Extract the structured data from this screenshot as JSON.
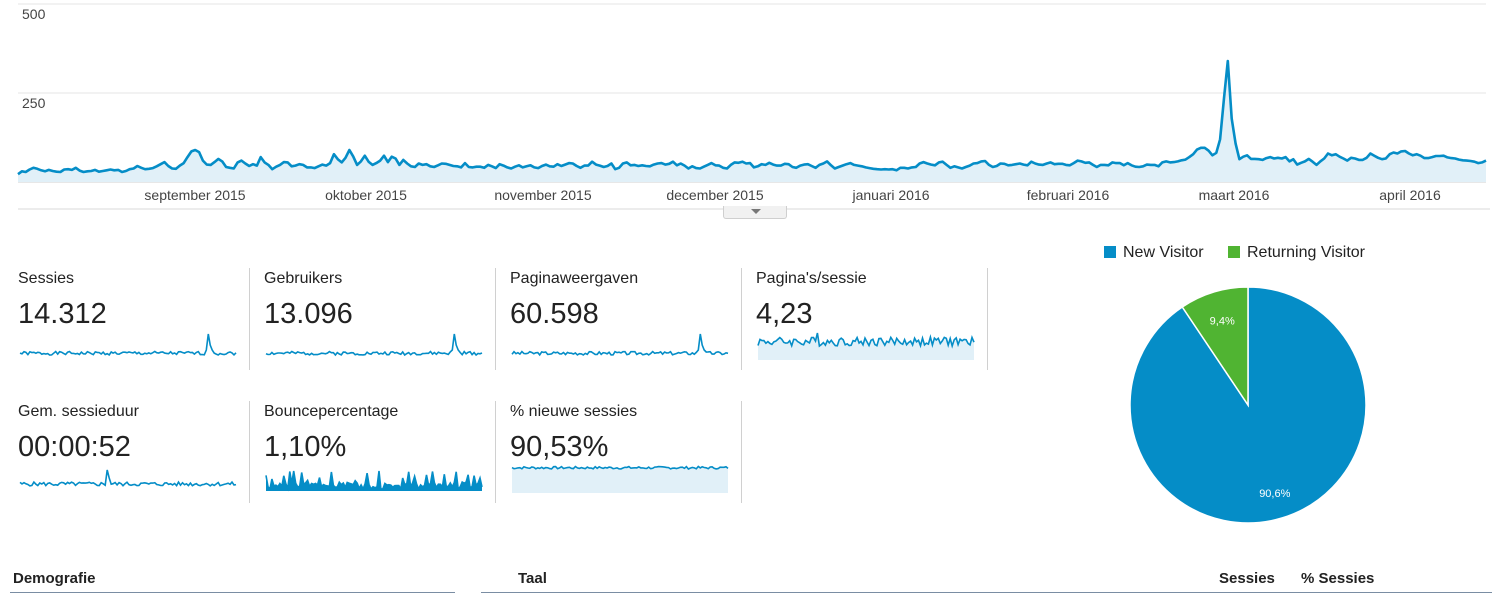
{
  "chart_data": [
    {
      "type": "area",
      "title": "",
      "ylim": [
        0,
        500
      ],
      "yticks": [
        "500",
        "250"
      ],
      "month_labels": [
        "september 2015",
        "oktober 2015",
        "november 2015",
        "december 2015",
        "januari 2016",
        "februari 2016",
        "maart 2016",
        "april 2016"
      ],
      "x_start": "2015-08-10",
      "x_end": "2016-04-22",
      "series": [
        {
          "color": "#058dc7",
          "values": [
            22,
            30,
            28,
            35,
            40,
            37,
            33,
            30,
            34,
            31,
            29,
            28,
            35,
            36,
            34,
            40,
            32,
            28,
            30,
            31,
            34,
            29,
            31,
            33,
            35,
            33,
            34,
            28,
            31,
            36,
            38,
            45,
            40,
            36,
            37,
            39,
            44,
            50,
            56,
            45,
            38,
            37,
            46,
            53,
            70,
            86,
            90,
            84,
            60,
            49,
            48,
            56,
            65,
            58,
            42,
            40,
            38,
            55,
            60,
            52,
            45,
            50,
            46,
            70,
            55,
            48,
            36,
            43,
            48,
            56,
            55,
            44,
            46,
            50,
            48,
            41,
            41,
            39,
            44,
            49,
            46,
            53,
            78,
            64,
            55,
            68,
            90,
            72,
            48,
            58,
            74,
            57,
            48,
            53,
            60,
            74,
            56,
            71,
            66,
            48,
            62,
            52,
            44,
            42,
            52,
            48,
            50,
            44,
            42,
            47,
            52,
            51,
            48,
            45,
            44,
            41,
            53,
            42,
            41,
            43,
            43,
            40,
            48,
            44,
            39,
            50,
            46,
            41,
            38,
            43,
            47,
            41,
            44,
            47,
            41,
            39,
            45,
            49,
            44,
            43,
            50,
            45,
            49,
            53,
            52,
            45,
            40,
            46,
            46,
            57,
            49,
            46,
            42,
            45,
            52,
            36,
            40,
            52,
            55,
            47,
            48,
            45,
            47,
            45,
            44,
            49,
            52,
            53,
            49,
            51,
            57,
            47,
            52,
            46,
            38,
            44,
            39,
            38,
            43,
            48,
            53,
            47,
            46,
            40,
            38,
            48,
            55,
            54,
            57,
            52,
            53,
            41,
            44,
            50,
            48,
            54,
            49,
            46,
            46,
            51,
            50,
            42,
            40,
            46,
            49,
            50,
            45,
            40,
            48,
            52,
            58,
            47,
            38,
            42,
            46,
            50,
            53,
            48,
            46,
            44,
            41,
            39,
            37,
            36,
            35,
            36,
            35,
            36,
            33,
            40,
            40,
            38,
            41,
            42,
            52,
            56,
            52,
            49,
            47,
            55,
            57,
            48,
            40,
            44,
            41,
            38,
            42,
            46,
            52,
            53,
            58,
            59,
            48,
            42,
            45,
            52,
            51,
            47,
            48,
            50,
            52,
            49,
            47,
            57,
            52,
            49,
            48,
            52,
            55,
            50,
            51,
            51,
            48,
            47,
            53,
            60,
            58,
            54,
            55,
            48,
            42,
            48,
            48,
            47,
            55,
            53,
            53,
            47,
            53,
            47,
            43,
            42,
            44,
            49,
            48,
            48,
            44,
            55,
            58,
            55,
            56,
            58,
            61,
            63,
            70,
            78,
            91,
            96,
            96,
            88,
            75,
            82,
            120,
            235,
            340,
            178,
            108,
            64,
            71,
            75,
            65,
            65,
            64,
            62,
            67,
            70,
            66,
            68,
            66,
            70,
            58,
            64,
            49,
            54,
            58,
            65,
            57,
            48,
            58,
            66,
            80,
            75,
            78,
            71,
            66,
            60,
            68,
            66,
            62,
            62,
            68,
            80,
            74,
            68,
            64,
            66,
            78,
            83,
            80,
            86,
            87,
            80,
            75,
            78,
            74,
            67,
            67,
            70,
            73,
            73,
            74,
            69,
            67,
            66,
            63,
            61,
            60,
            59,
            57,
            53,
            55,
            60
          ]
        }
      ]
    },
    {
      "type": "pie",
      "categories": [
        "New Visitor",
        "Returning Visitor"
      ],
      "values": [
        90.6,
        9.4
      ],
      "colors": [
        "#058dc7",
        "#50b432"
      ],
      "slice_labels": [
        "90,6%",
        "9,4%"
      ]
    }
  ],
  "metrics": [
    {
      "label": "Sessies",
      "value": "14.312"
    },
    {
      "label": "Gebruikers",
      "value": "13.096"
    },
    {
      "label": "Paginaweergaven",
      "value": "60.598"
    },
    {
      "label": "Pagina's/sessie",
      "value": "4,23"
    },
    {
      "label": "Gem. sessieduur",
      "value": "00:00:52"
    },
    {
      "label": "Bouncepercentage",
      "value": "1,10%"
    },
    {
      "label": "% nieuwe sessies",
      "value": "90,53%"
    }
  ],
  "legend": {
    "new_visitor": "New Visitor",
    "returning_visitor": "Returning Visitor"
  },
  "table": {
    "left_title": "Demografie",
    "col_taal": "Taal",
    "col_sessies": "Sessies",
    "col_pct_sessies": "% Sessies"
  },
  "colors": {
    "line": "#058dc7",
    "fill": "#e1f0f8",
    "returning": "#50b432",
    "grid": "#e6e6e6"
  }
}
